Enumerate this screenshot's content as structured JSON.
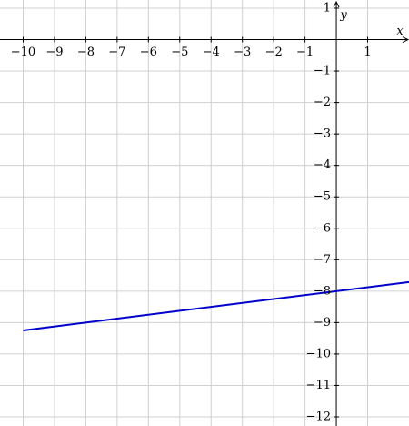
{
  "chart_data": {
    "type": "line",
    "x_label": "x",
    "y_label": "y",
    "x": [
      -10,
      2.32
    ],
    "series": [
      {
        "color": "#0000cc",
        "values": [
          -9.25,
          -7.71
        ]
      }
    ],
    "xlim": [
      -10.74,
      2.32
    ],
    "ylim": [
      -12.29,
      1.26
    ],
    "xticks": [
      {
        "value": -10,
        "label": "−10"
      },
      {
        "value": -9,
        "label": "−9"
      },
      {
        "value": -8,
        "label": "−8"
      },
      {
        "value": -7,
        "label": "−7"
      },
      {
        "value": -6,
        "label": "−6"
      },
      {
        "value": -5,
        "label": "−5"
      },
      {
        "value": -4,
        "label": "−4"
      },
      {
        "value": -3,
        "label": "−3"
      },
      {
        "value": -2,
        "label": "−2"
      },
      {
        "value": -1,
        "label": "−1"
      },
      1
    ],
    "yticks": [
      1,
      {
        "value": -1,
        "label": "−1"
      },
      {
        "value": -2,
        "label": "−2"
      },
      {
        "value": -3,
        "label": "−3"
      },
      {
        "value": -4,
        "label": "−4"
      },
      {
        "value": -5,
        "label": "−5"
      },
      {
        "value": -6,
        "label": "−6"
      },
      {
        "value": -7,
        "label": "−7"
      },
      {
        "value": -8,
        "label": "−8"
      },
      {
        "value": -9,
        "label": "−9"
      },
      {
        "value": -10,
        "label": "−10"
      },
      {
        "value": -11,
        "label": "−11"
      },
      {
        "value": -12,
        "label": "−12"
      }
    ],
    "grid": true
  }
}
